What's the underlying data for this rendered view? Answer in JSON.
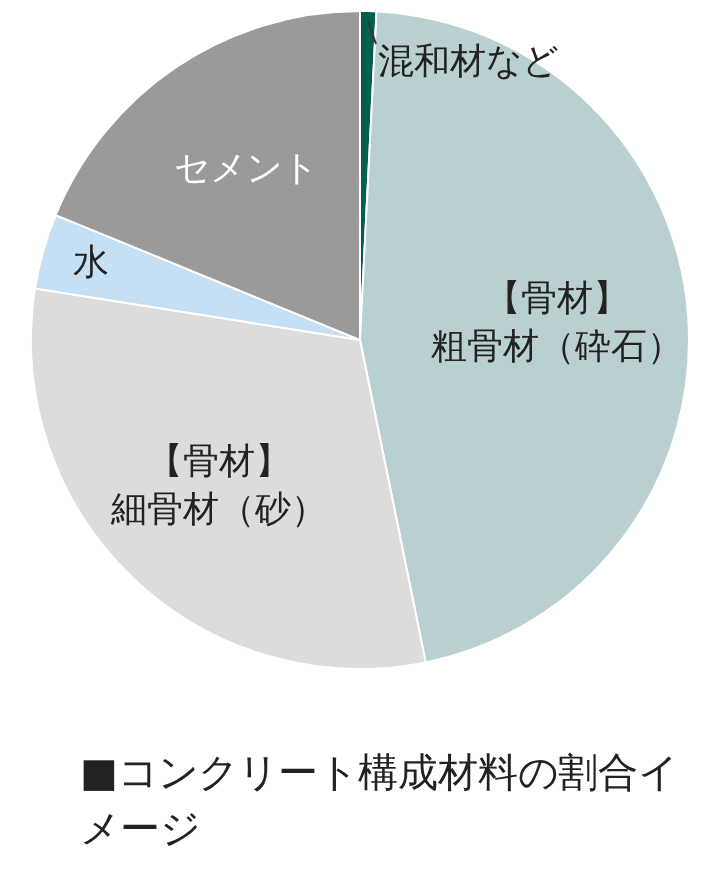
{
  "chart_data": {
    "type": "pie",
    "title": "■コンクリート構成材料の割合イメージ",
    "categories": [
      "混和材など",
      "【骨材】粗骨材（砕石）",
      "【骨材】細骨材（砂）",
      "水",
      "セメント"
    ],
    "values": [
      0.8,
      46,
      30.7,
      3.7,
      18.8
    ],
    "colors": [
      "#00604f",
      "#b9cfd0",
      "#dcdcdc",
      "#c5e0f5",
      "#9a9a9a"
    ],
    "legend": false
  }
}
